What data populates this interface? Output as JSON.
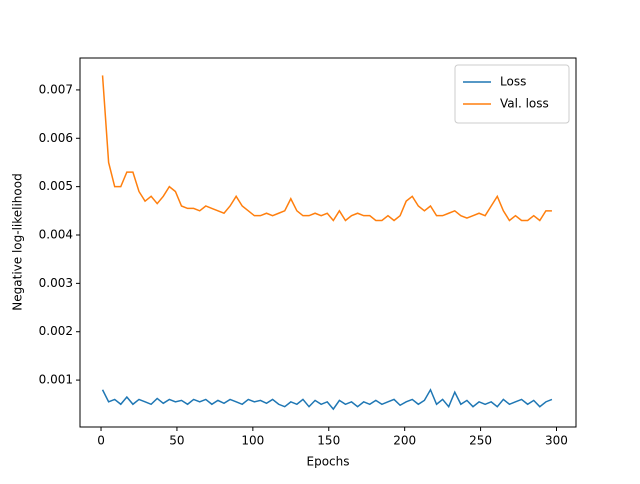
{
  "chart_data": {
    "type": "line",
    "xlabel": "Epochs",
    "ylabel": "Negative log-likelihood",
    "x": [
      1,
      5,
      9,
      13,
      17,
      21,
      25,
      29,
      33,
      37,
      41,
      45,
      49,
      53,
      57,
      61,
      65,
      69,
      73,
      77,
      81,
      85,
      89,
      93,
      97,
      101,
      105,
      109,
      113,
      117,
      121,
      125,
      129,
      133,
      137,
      141,
      145,
      149,
      153,
      157,
      161,
      165,
      169,
      173,
      177,
      181,
      185,
      189,
      193,
      197,
      201,
      205,
      209,
      213,
      217,
      221,
      225,
      229,
      233,
      237,
      241,
      245,
      249,
      253,
      257,
      261,
      265,
      269,
      273,
      277,
      281,
      285,
      289,
      293,
      297
    ],
    "series": [
      {
        "name": "Loss",
        "color": "#1f77b4",
        "values": [
          0.0008,
          0.00055,
          0.0006,
          0.0005,
          0.00065,
          0.0005,
          0.0006,
          0.00055,
          0.0005,
          0.00062,
          0.00052,
          0.0006,
          0.00055,
          0.00058,
          0.0005,
          0.0006,
          0.00055,
          0.0006,
          0.0005,
          0.00058,
          0.00052,
          0.0006,
          0.00055,
          0.0005,
          0.0006,
          0.00055,
          0.00058,
          0.00052,
          0.0006,
          0.0005,
          0.00045,
          0.00055,
          0.0005,
          0.0006,
          0.00045,
          0.00058,
          0.0005,
          0.00055,
          0.0004,
          0.00058,
          0.0005,
          0.00055,
          0.00045,
          0.00055,
          0.0005,
          0.00058,
          0.0005,
          0.00055,
          0.0006,
          0.00048,
          0.00055,
          0.0006,
          0.0005,
          0.00058,
          0.0008,
          0.0005,
          0.0006,
          0.00045,
          0.00075,
          0.0005,
          0.00058,
          0.00045,
          0.00055,
          0.0005,
          0.00055,
          0.00045,
          0.0006,
          0.0005,
          0.00055,
          0.0006,
          0.0005,
          0.00058,
          0.00045,
          0.00055,
          0.0006
        ]
      },
      {
        "name": "Val. loss",
        "color": "#ff7f0e",
        "values": [
          0.0073,
          0.0055,
          0.005,
          0.005,
          0.0053,
          0.0053,
          0.0049,
          0.0047,
          0.0048,
          0.00465,
          0.0048,
          0.005,
          0.0049,
          0.0046,
          0.00455,
          0.00455,
          0.0045,
          0.0046,
          0.00455,
          0.0045,
          0.00445,
          0.0046,
          0.0048,
          0.0046,
          0.0045,
          0.0044,
          0.0044,
          0.00445,
          0.0044,
          0.00445,
          0.0045,
          0.00475,
          0.0045,
          0.0044,
          0.0044,
          0.00445,
          0.0044,
          0.00445,
          0.0043,
          0.0045,
          0.0043,
          0.0044,
          0.00445,
          0.0044,
          0.0044,
          0.0043,
          0.0043,
          0.0044,
          0.0043,
          0.0044,
          0.0047,
          0.0048,
          0.0046,
          0.0045,
          0.0046,
          0.0044,
          0.0044,
          0.00445,
          0.0045,
          0.0044,
          0.00435,
          0.0044,
          0.00445,
          0.0044,
          0.0046,
          0.0048,
          0.0045,
          0.0043,
          0.0044,
          0.0043,
          0.0043,
          0.0044,
          0.0043,
          0.0045,
          0.0045
        ]
      }
    ],
    "xlim": [
      -13.85,
      312.85
    ],
    "xticks": [
      0,
      50,
      100,
      150,
      200,
      250,
      300
    ],
    "ylim": [
      3e-05,
      0.00766
    ],
    "yticks": [
      0.001,
      0.002,
      0.003,
      0.004,
      0.005,
      0.006,
      0.007
    ],
    "legend": "upper right"
  }
}
